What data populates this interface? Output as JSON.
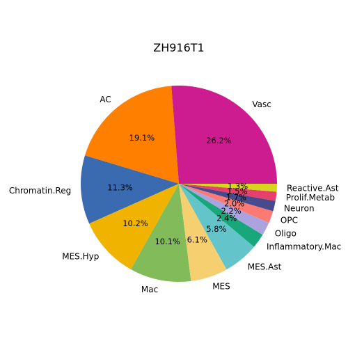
{
  "chart_data": {
    "type": "pie",
    "title": "ZH916T1",
    "start_angle_deg": 0,
    "direction": "counterclockwise",
    "slices": [
      {
        "label": "Vasc",
        "value": 26.2,
        "pct_label": "26.2%",
        "color": "#cd1c8f"
      },
      {
        "label": "AC",
        "value": 19.1,
        "pct_label": "19.1%",
        "color": "#ff7f00"
      },
      {
        "label": "Chromatin.Reg",
        "value": 11.3,
        "pct_label": "11.3%",
        "color": "#3a6aaf"
      },
      {
        "label": "MES.Hyp",
        "value": 10.2,
        "pct_label": "10.2%",
        "color": "#f0b400"
      },
      {
        "label": "Mac",
        "value": 10.1,
        "pct_label": "10.1%",
        "color": "#82bb5a"
      },
      {
        "label": "MES",
        "value": 6.1,
        "pct_label": "6.1%",
        "color": "#f6cf70"
      },
      {
        "label": "MES.Ast",
        "value": 5.8,
        "pct_label": "5.8%",
        "color": "#63c5c9"
      },
      {
        "label": "Inflammatory.Mac",
        "value": 2.4,
        "pct_label": "2.4%",
        "color": "#17a77a"
      },
      {
        "label": "Oligo",
        "value": 2.2,
        "pct_label": "2.2%",
        "color": "#aaa3e0"
      },
      {
        "label": "OPC",
        "value": 2.0,
        "pct_label": "2.0%",
        "color": "#fb7a74"
      },
      {
        "label": "Neuron",
        "value": 1.7,
        "pct_label": "1.7%",
        "color": "#474a8c"
      },
      {
        "label": "Prolif.Metab",
        "value": 1.5,
        "pct_label": "1.5%",
        "color": "#e8406c"
      },
      {
        "label": "Reactive.Ast",
        "value": 1.3,
        "pct_label": "1.3%",
        "color": "#d6d520"
      }
    ]
  }
}
